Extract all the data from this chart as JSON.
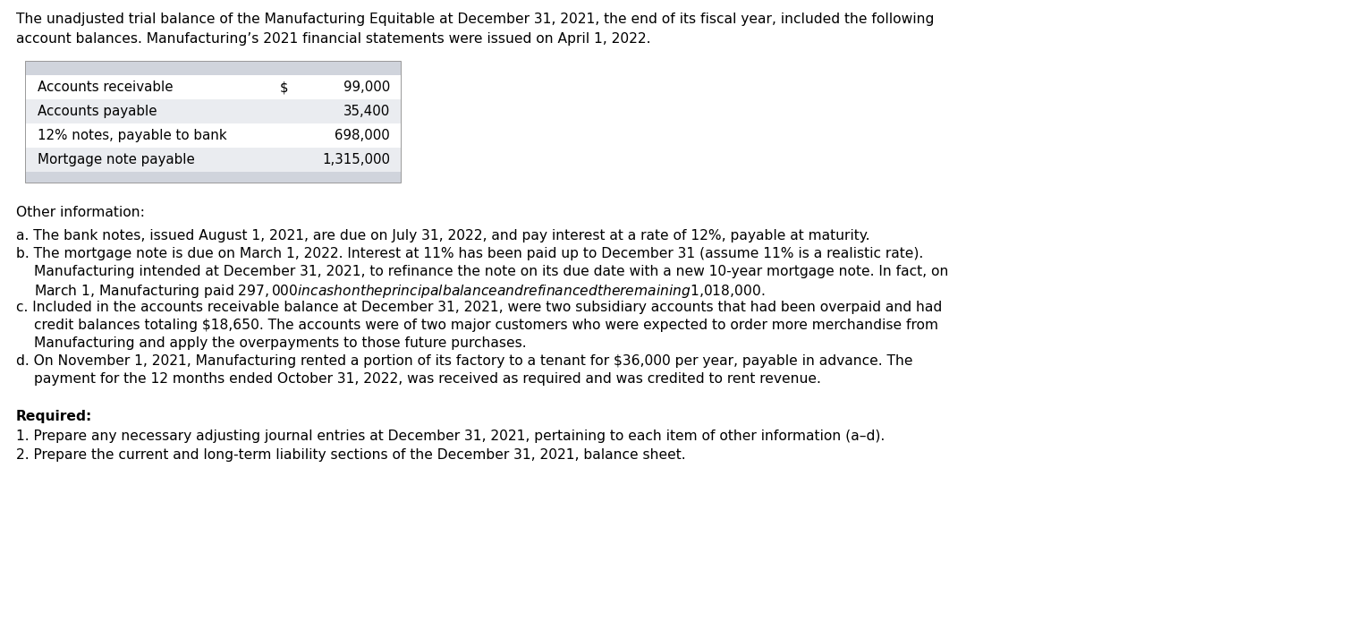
{
  "header_line1": "The unadjusted trial balance of the Manufacturing Equitable at December 31, 2021, the end of its fiscal year, included the following",
  "header_line2": "account balances. Manufacturing’s 2021 financial statements were issued on April 1, 2022.",
  "table_header_bg": "#d0d4dc",
  "table_footer_bg": "#d0d4dc",
  "table_row_bg_odd": "#ffffff",
  "table_row_bg_even": "#eaecf0",
  "table_rows": [
    {
      "label": "Accounts receivable",
      "dollar": "$",
      "value": "99,000"
    },
    {
      "label": "Accounts payable",
      "dollar": "",
      "value": "35,400"
    },
    {
      "label": "12% notes, payable to bank",
      "dollar": "",
      "value": "698,000"
    },
    {
      "label": "Mortgage note payable",
      "dollar": "",
      "value": "1,315,000"
    }
  ],
  "other_info_label": "Other information:",
  "items": [
    {
      "lines": [
        {
          "indent": false,
          "text": "a. The bank notes, issued August 1, 2021, are due on July 31, 2022, and pay interest at a rate of 12%, payable at maturity."
        }
      ]
    },
    {
      "lines": [
        {
          "indent": false,
          "text": "b. The mortgage note is due on March 1, 2022. Interest at 11% has been paid up to December 31 (assume 11% is a realistic rate)."
        },
        {
          "indent": true,
          "text": "Manufacturing intended at December 31, 2021, to refinance the note on its due date with a new 10-year mortgage note. In fact, on"
        },
        {
          "indent": true,
          "text": "March 1, Manufacturing paid $297,000 in cash on the principal balance and refinanced the remaining $1,018,000."
        }
      ]
    },
    {
      "lines": [
        {
          "indent": false,
          "text": "c. Included in the accounts receivable balance at December 31, 2021, were two subsidiary accounts that had been overpaid and had"
        },
        {
          "indent": true,
          "text": "credit balances totaling $18,650. The accounts were of two major customers who were expected to order more merchandise from"
        },
        {
          "indent": true,
          "text": "Manufacturing and apply the overpayments to those future purchases."
        }
      ]
    },
    {
      "lines": [
        {
          "indent": false,
          "text": "d. On November 1, 2021, Manufacturing rented a portion of its factory to a tenant for $36,000 per year, payable in advance. The"
        },
        {
          "indent": true,
          "text": "payment for the 12 months ended October 31, 2022, was received as required and was credited to rent revenue."
        }
      ]
    }
  ],
  "required_label": "Required:",
  "required_items": [
    "1. Prepare any necessary adjusting journal entries at December 31, 2021, pertaining to each item of other information (a–d).",
    "2. Prepare the current and long-term liability sections of the December 31, 2021, balance sheet."
  ],
  "bg_color": "#ffffff",
  "text_color": "#000000",
  "font_size_header": 11.2,
  "font_size_table": 10.8,
  "font_size_body": 11.2
}
